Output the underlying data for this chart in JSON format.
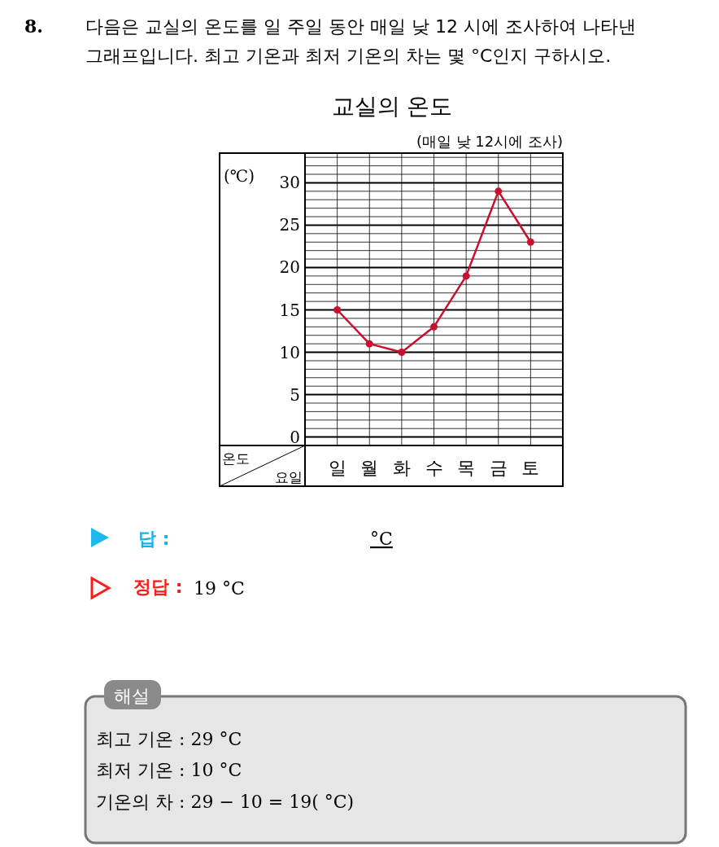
{
  "chart_data": {
    "type": "line",
    "title": "교실의 온도",
    "subtitle": "(매일 낮 12시에 조사)",
    "ylabel": "온도",
    "xlabel": "요일",
    "categories": [
      "일",
      "월",
      "화",
      "수",
      "목",
      "금",
      "토"
    ],
    "series": [
      {
        "color": "#c8102e",
        "values": [
          15,
          11,
          10,
          13,
          19,
          29,
          23
        ]
      }
    ],
    "ylim": [
      -1,
      33.5
    ],
    "yticks": [
      0,
      5,
      10,
      15,
      20,
      25,
      30
    ],
    "grid": true,
    "marker": "circle",
    "annotations": [
      "8.",
      "다음은 교실의 온도를 일 주일 동안 매일 낮 12 시에 조사하여 나타낸 그래프입니다. 최고 기온과 최저 기온의 차는 몇 °C인지 구하시오.",
      "(℃)",
      "답 :",
      "°C",
      "정답 :",
      "19 °C",
      "해설",
      "최고 기온 : 29 °C",
      "최저 기온 : 10 °C",
      "기온의 차 : 29 − 10 = 19( °C)"
    ]
  }
}
